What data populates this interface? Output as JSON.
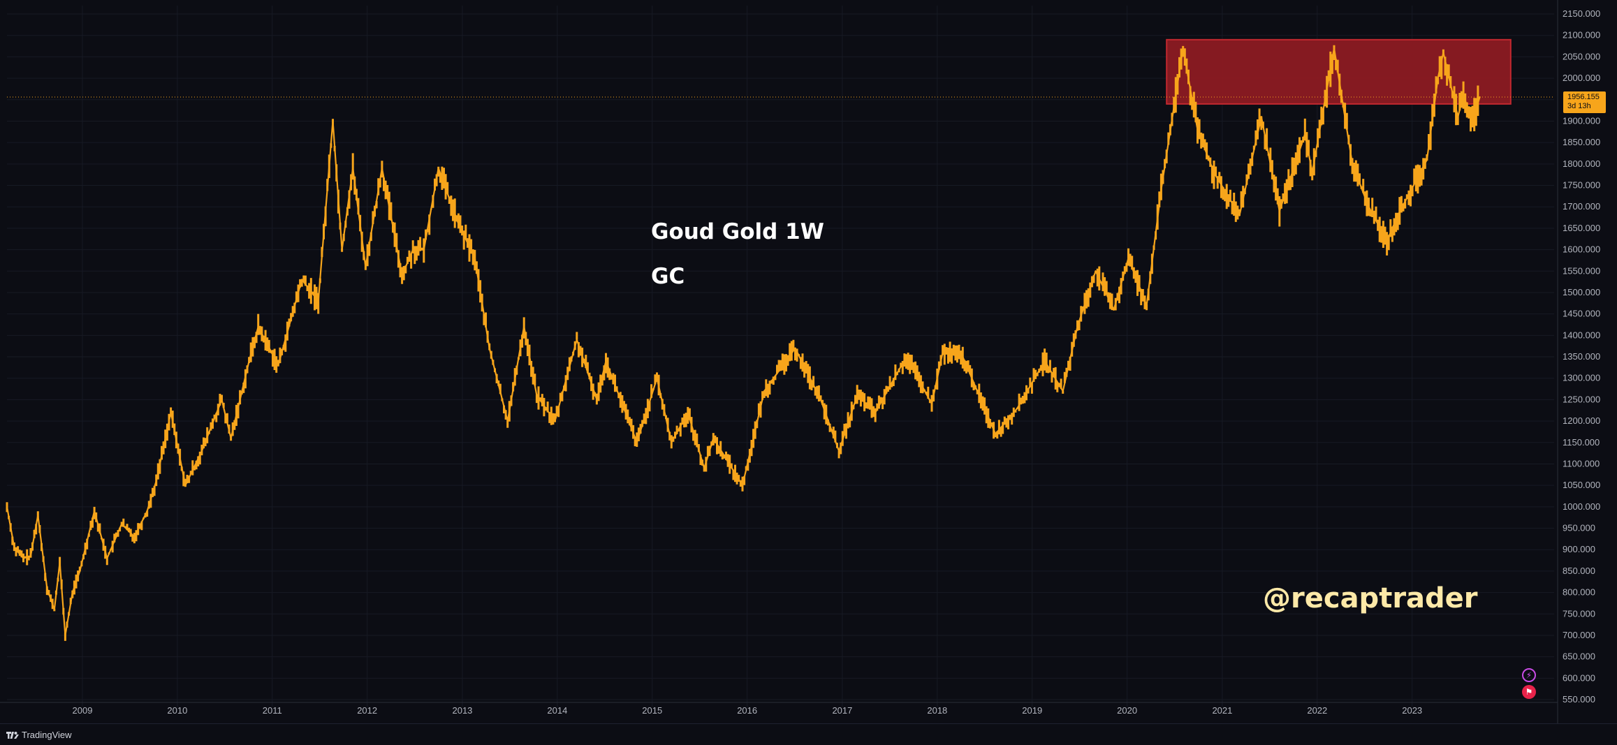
{
  "chart_data": {
    "type": "line",
    "series": [
      {
        "values": [
          [
            "2008-03-17",
            1000
          ],
          [
            "2008-04-14",
            905
          ],
          [
            "2008-05-19",
            880
          ],
          [
            "2008-06-16",
            885
          ],
          [
            "2008-07-14",
            980
          ],
          [
            "2008-08-18",
            810
          ],
          [
            "2008-09-15",
            760
          ],
          [
            "2008-10-06",
            870
          ],
          [
            "2008-10-27",
            700
          ],
          [
            "2008-11-24",
            800
          ],
          [
            "2008-12-22",
            850
          ],
          [
            "2009-02-16",
            990
          ],
          [
            "2009-04-06",
            880
          ],
          [
            "2009-06-01",
            960
          ],
          [
            "2009-07-20",
            930
          ],
          [
            "2009-09-07",
            990
          ],
          [
            "2009-10-12",
            1060
          ],
          [
            "2009-12-07",
            1220
          ],
          [
            "2010-02-01",
            1050
          ],
          [
            "2010-04-05",
            1130
          ],
          [
            "2010-06-21",
            1250
          ],
          [
            "2010-07-26",
            1160
          ],
          [
            "2010-10-04",
            1340
          ],
          [
            "2010-11-08",
            1420
          ],
          [
            "2011-01-24",
            1330
          ],
          [
            "2011-04-25",
            1530
          ],
          [
            "2011-06-27",
            1480
          ],
          [
            "2011-08-22",
            1900
          ],
          [
            "2011-09-26",
            1600
          ],
          [
            "2011-11-07",
            1790
          ],
          [
            "2011-12-26",
            1560
          ],
          [
            "2012-02-27",
            1790
          ],
          [
            "2012-05-14",
            1540
          ],
          [
            "2012-06-25",
            1600
          ],
          [
            "2012-08-06",
            1600
          ],
          [
            "2012-10-01",
            1790
          ],
          [
            "2012-12-17",
            1660
          ],
          [
            "2013-02-18",
            1580
          ],
          [
            "2013-04-15",
            1370
          ],
          [
            "2013-06-24",
            1200
          ],
          [
            "2013-08-26",
            1420
          ],
          [
            "2013-10-14",
            1260
          ],
          [
            "2013-12-23",
            1200
          ],
          [
            "2014-03-17",
            1390
          ],
          [
            "2014-06-02",
            1250
          ],
          [
            "2014-07-07",
            1340
          ],
          [
            "2014-11-03",
            1150
          ],
          [
            "2015-01-19",
            1300
          ],
          [
            "2015-03-16",
            1150
          ],
          [
            "2015-05-18",
            1220
          ],
          [
            "2015-07-20",
            1090
          ],
          [
            "2015-08-24",
            1160
          ],
          [
            "2015-12-14",
            1050
          ],
          [
            "2016-03-07",
            1270
          ],
          [
            "2016-07-04",
            1370
          ],
          [
            "2016-10-10",
            1250
          ],
          [
            "2016-12-19",
            1130
          ],
          [
            "2017-02-27",
            1260
          ],
          [
            "2017-05-08",
            1220
          ],
          [
            "2017-09-04",
            1350
          ],
          [
            "2017-12-11",
            1240
          ],
          [
            "2018-01-22",
            1360
          ],
          [
            "2018-04-09",
            1350
          ],
          [
            "2018-08-13",
            1170
          ],
          [
            "2018-11-05",
            1230
          ],
          [
            "2019-02-18",
            1340
          ],
          [
            "2019-04-29",
            1270
          ],
          [
            "2019-06-24",
            1420
          ],
          [
            "2019-09-02",
            1550
          ],
          [
            "2019-11-11",
            1460
          ],
          [
            "2020-01-06",
            1580
          ],
          [
            "2020-03-16",
            1470
          ],
          [
            "2020-05-11",
            1740
          ],
          [
            "2020-08-03",
            2070
          ],
          [
            "2020-09-28",
            1880
          ],
          [
            "2020-11-30",
            1780
          ],
          [
            "2021-03-08",
            1680
          ],
          [
            "2021-05-31",
            1910
          ],
          [
            "2021-08-09",
            1690
          ],
          [
            "2021-11-15",
            1870
          ],
          [
            "2021-12-13",
            1780
          ],
          [
            "2022-03-07",
            2070
          ],
          [
            "2022-05-16",
            1800
          ],
          [
            "2022-07-18",
            1700
          ],
          [
            "2022-09-26",
            1620
          ],
          [
            "2022-11-07",
            1680
          ],
          [
            "2023-02-27",
            1810
          ],
          [
            "2023-04-10",
            2000
          ],
          [
            "2023-05-01",
            2060
          ],
          [
            "2023-06-26",
            1910
          ],
          [
            "2023-07-17",
            1960
          ],
          [
            "2023-08-21",
            1900
          ],
          [
            "2023-09-18",
            1956
          ]
        ]
      }
    ],
    "y_ticks": [
      "2150.000",
      "2100.000",
      "2050.000",
      "2000.000",
      "1950.000",
      "1900.000",
      "1850.000",
      "1800.000",
      "1750.000",
      "1700.000",
      "1650.000",
      "1600.000",
      "1550.000",
      "1500.000",
      "1450.000",
      "1400.000",
      "1350.000",
      "1300.000",
      "1250.000",
      "1200.000",
      "1150.000",
      "1100.000",
      "1050.000",
      "1000.000",
      "950.000",
      "900.000",
      "850.000",
      "800.000",
      "750.000",
      "700.000",
      "650.000",
      "600.000",
      "550.000"
    ],
    "x_ticks": [
      "2009",
      "2010",
      "2011",
      "2012",
      "2013",
      "2014",
      "2015",
      "2016",
      "2017",
      "2018",
      "2019",
      "2020",
      "2021",
      "2022",
      "2023"
    ],
    "ylim": [
      550,
      2150
    ],
    "xlim": [
      "2008-03-17",
      "2024-06-30"
    ],
    "grid": true,
    "colors": {
      "line": "#f7a51b",
      "background": "#0c0d14",
      "zone": "#8c1b22",
      "zone_border": "#c2282f",
      "price_line": "#f7a51b"
    },
    "annotations": {
      "title": "Goud Gold 1W",
      "ticker": "GC",
      "watermark": "@recaptrader"
    },
    "resistance_zone": {
      "x_start": "2020-06-01",
      "x_end": "2024-01-15",
      "y_low": 1940,
      "y_high": 2090
    },
    "last_price": {
      "value": 1956.155,
      "label": "1956.155",
      "countdown": "3d 13h"
    }
  },
  "footer": {
    "brand": "TradingView"
  },
  "icons": {
    "bolt": "lightning-icon",
    "flag": "flag-icon"
  }
}
